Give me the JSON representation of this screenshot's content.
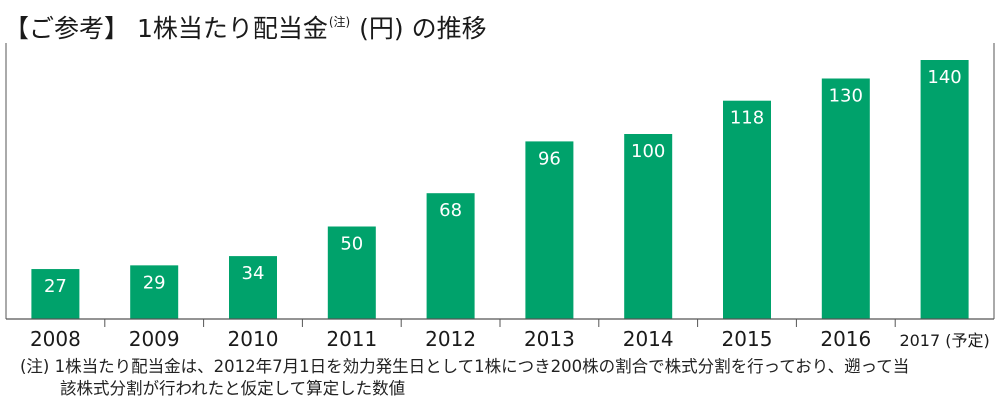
{
  "title": {
    "prefix": "【ご参考】 1株当たり配当金",
    "superscript": "(注)",
    "suffix": " (円) の推移"
  },
  "footnote": {
    "line1": "(注) 1株当たり配当金は、2012年7月1日を効力発生日として1株につき200株の割合で株式分割を行っており、遡って当",
    "line2": "該株式分割が行われたと仮定して算定した数値"
  },
  "colors": {
    "bar": "#00a26b",
    "bar_label": "#ffffff",
    "axis": "#555555"
  },
  "chart_data": {
    "type": "bar",
    "title": "【ご参考】 1株当たり配当金(注) (円) の推移",
    "categories": [
      "2008",
      "2009",
      "2010",
      "2011",
      "2012",
      "2013",
      "2014",
      "2015",
      "2016",
      "2017 (予定)"
    ],
    "values": [
      27,
      29,
      34,
      50,
      68,
      96,
      100,
      118,
      130,
      140
    ],
    "xlabel": "",
    "ylabel": "",
    "ylim": [
      0,
      150
    ],
    "grid": false,
    "data_labels": true
  }
}
